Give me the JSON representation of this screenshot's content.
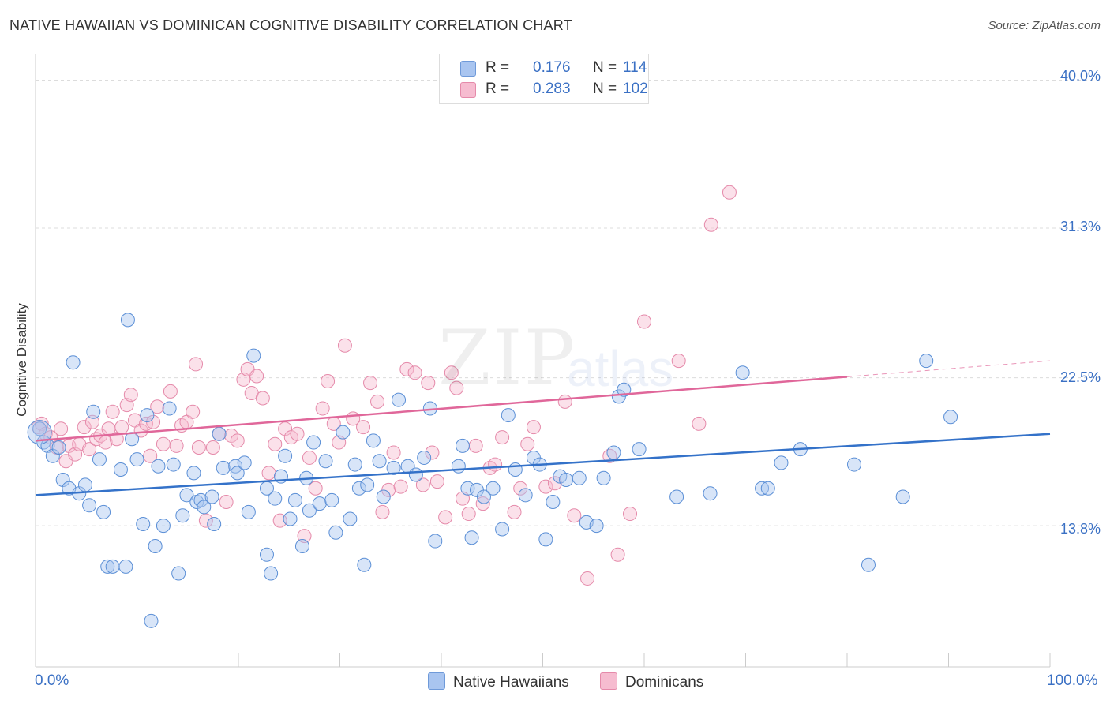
{
  "title": "NATIVE HAWAIIAN VS DOMINICAN COGNITIVE DISABILITY CORRELATION CHART",
  "source": "Source: ZipAtlas.com",
  "watermark": {
    "zip": "ZIP",
    "atlas": "atlas"
  },
  "legend": {
    "rows": [
      {
        "r_label": "R =",
        "r_value": "0.176",
        "n_label": "N =",
        "n_value": "114",
        "color": "#a9c5f0",
        "border": "#6f9ad9"
      },
      {
        "r_label": "R =",
        "r_value": "0.283",
        "n_label": "N =",
        "n_value": "102",
        "color": "#f6bcd0",
        "border": "#e58aaa"
      }
    ]
  },
  "bottom_legend": [
    {
      "label": "Native Hawaiians",
      "color": "#a9c5f0",
      "border": "#6f9ad9"
    },
    {
      "label": "Dominicans",
      "color": "#f6bcd0",
      "border": "#e58aaa"
    }
  ],
  "chart_data": {
    "type": "scatter",
    "title": "NATIVE HAWAIIAN VS DOMINICAN COGNITIVE DISABILITY CORRELATION CHART",
    "xlabel": "",
    "ylabel": "Cognitive Disability",
    "x_tick_labels": [
      "0.0%",
      "100.0%"
    ],
    "y_tick_labels": [
      "40.0%",
      "31.3%",
      "22.5%",
      "13.8%"
    ],
    "y_ticks": [
      40.0,
      31.3,
      22.5,
      13.8
    ],
    "xlim": [
      0,
      100
    ],
    "ylim": [
      5.5,
      41
    ],
    "grid": "horizontal dashed",
    "legend_position": "top-center",
    "colors": {
      "blue_fill": "#a9c5f0",
      "blue_stroke": "#5b8fd6",
      "blue_line": "#3472c9",
      "pink_fill": "#f6bcd0",
      "pink_stroke": "#e58aaa",
      "pink_line": "#e0679a"
    },
    "series": [
      {
        "name": "Native Hawaiians",
        "trend": {
          "x0": 0,
          "y0": 15.6,
          "x1": 100,
          "y1": 19.2
        },
        "points": [
          [
            0.4,
            19.5
          ],
          [
            0.8,
            18.7
          ],
          [
            1.2,
            18.5
          ],
          [
            1.7,
            17.9
          ],
          [
            2.3,
            18.4
          ],
          [
            2.7,
            16.5
          ],
          [
            3.3,
            16.0
          ],
          [
            3.7,
            23.4
          ],
          [
            4.3,
            15.7
          ],
          [
            4.9,
            16.2
          ],
          [
            5.3,
            15.0
          ],
          [
            5.7,
            20.5
          ],
          [
            6.3,
            17.7
          ],
          [
            6.7,
            14.6
          ],
          [
            7.1,
            11.4
          ],
          [
            7.6,
            11.4
          ],
          [
            8.4,
            17.1
          ],
          [
            8.9,
            11.4
          ],
          [
            9.1,
            25.9
          ],
          [
            9.5,
            18.9
          ],
          [
            10.0,
            17.7
          ],
          [
            10.6,
            13.9
          ],
          [
            11.0,
            20.3
          ],
          [
            11.4,
            8.2
          ],
          [
            11.8,
            12.6
          ],
          [
            12.1,
            17.3
          ],
          [
            12.6,
            13.8
          ],
          [
            13.2,
            20.7
          ],
          [
            13.6,
            17.4
          ],
          [
            14.1,
            11.0
          ],
          [
            14.5,
            14.4
          ],
          [
            14.9,
            15.6
          ],
          [
            15.6,
            16.9
          ],
          [
            15.9,
            15.2
          ],
          [
            16.3,
            15.3
          ],
          [
            16.6,
            14.9
          ],
          [
            17.4,
            15.5
          ],
          [
            17.6,
            13.9
          ],
          [
            18.1,
            19.2
          ],
          [
            18.5,
            17.2
          ],
          [
            19.7,
            17.3
          ],
          [
            19.9,
            16.9
          ],
          [
            20.6,
            17.5
          ],
          [
            21.0,
            14.6
          ],
          [
            21.5,
            23.8
          ],
          [
            22.8,
            16.0
          ],
          [
            22.8,
            12.1
          ],
          [
            23.2,
            11.0
          ],
          [
            23.6,
            15.4
          ],
          [
            24.2,
            16.7
          ],
          [
            24.6,
            17.9
          ],
          [
            25.1,
            14.2
          ],
          [
            25.6,
            15.3
          ],
          [
            26.3,
            12.6
          ],
          [
            26.7,
            16.6
          ],
          [
            27.0,
            14.7
          ],
          [
            27.4,
            18.7
          ],
          [
            28.0,
            15.1
          ],
          [
            28.6,
            17.6
          ],
          [
            29.2,
            15.3
          ],
          [
            29.6,
            13.4
          ],
          [
            30.3,
            19.3
          ],
          [
            31.0,
            14.2
          ],
          [
            31.5,
            17.4
          ],
          [
            31.9,
            16.0
          ],
          [
            32.4,
            11.5
          ],
          [
            32.7,
            16.2
          ],
          [
            33.3,
            18.8
          ],
          [
            33.9,
            17.6
          ],
          [
            34.3,
            15.5
          ],
          [
            35.3,
            17.2
          ],
          [
            35.8,
            21.2
          ],
          [
            36.7,
            17.3
          ],
          [
            37.5,
            16.8
          ],
          [
            38.3,
            17.8
          ],
          [
            38.9,
            20.7
          ],
          [
            39.4,
            12.9
          ],
          [
            41.7,
            17.3
          ],
          [
            42.1,
            18.5
          ],
          [
            42.6,
            16.0
          ],
          [
            43.0,
            13.1
          ],
          [
            43.5,
            15.9
          ],
          [
            44.2,
            15.5
          ],
          [
            45.1,
            16.0
          ],
          [
            46.0,
            13.6
          ],
          [
            46.6,
            20.3
          ],
          [
            47.3,
            17.1
          ],
          [
            48.3,
            15.6
          ],
          [
            49.1,
            17.8
          ],
          [
            49.7,
            17.4
          ],
          [
            50.3,
            13.0
          ],
          [
            51.0,
            15.2
          ],
          [
            51.7,
            16.7
          ],
          [
            52.3,
            16.5
          ],
          [
            53.6,
            16.6
          ],
          [
            54.3,
            14.0
          ],
          [
            55.3,
            13.8
          ],
          [
            56.0,
            16.6
          ],
          [
            57.0,
            18.1
          ],
          [
            57.5,
            21.4
          ],
          [
            58.0,
            21.8
          ],
          [
            59.5,
            18.3
          ],
          [
            63.2,
            15.5
          ],
          [
            66.5,
            15.7
          ],
          [
            69.7,
            22.8
          ],
          [
            71.6,
            16.0
          ],
          [
            72.2,
            16.0
          ],
          [
            73.5,
            17.5
          ],
          [
            75.4,
            18.3
          ],
          [
            80.7,
            17.4
          ],
          [
            82.1,
            11.5
          ],
          [
            85.5,
            15.5
          ],
          [
            87.8,
            23.5
          ],
          [
            90.2,
            20.2
          ]
        ]
      },
      {
        "name": "Dominicans",
        "trend": {
          "x0": 0,
          "y0": 18.8,
          "x1": 100,
          "y1": 23.5
        },
        "points": [
          [
            0.3,
            19.6
          ],
          [
            0.6,
            19.8
          ],
          [
            1.0,
            19.2
          ],
          [
            1.5,
            19.0
          ],
          [
            2.1,
            18.4
          ],
          [
            2.5,
            19.5
          ],
          [
            3.0,
            17.6
          ],
          [
            3.3,
            18.5
          ],
          [
            3.9,
            18.0
          ],
          [
            4.3,
            18.6
          ],
          [
            4.8,
            19.6
          ],
          [
            5.3,
            18.3
          ],
          [
            5.6,
            19.9
          ],
          [
            6.0,
            18.9
          ],
          [
            6.4,
            19.1
          ],
          [
            6.9,
            18.7
          ],
          [
            7.2,
            19.5
          ],
          [
            7.6,
            20.5
          ],
          [
            8.0,
            18.9
          ],
          [
            8.5,
            19.6
          ],
          [
            9.0,
            20.9
          ],
          [
            9.4,
            21.5
          ],
          [
            9.8,
            20.0
          ],
          [
            10.4,
            19.4
          ],
          [
            10.9,
            19.8
          ],
          [
            11.3,
            17.9
          ],
          [
            11.6,
            19.9
          ],
          [
            12.0,
            20.8
          ],
          [
            12.6,
            18.6
          ],
          [
            13.3,
            21.7
          ],
          [
            13.9,
            18.5
          ],
          [
            14.4,
            19.7
          ],
          [
            14.9,
            19.9
          ],
          [
            15.5,
            20.5
          ],
          [
            15.8,
            23.3
          ],
          [
            16.1,
            18.4
          ],
          [
            16.8,
            14.1
          ],
          [
            17.5,
            18.4
          ],
          [
            18.1,
            19.2
          ],
          [
            18.8,
            15.2
          ],
          [
            19.3,
            19.1
          ],
          [
            19.9,
            18.8
          ],
          [
            20.5,
            22.4
          ],
          [
            20.9,
            23.0
          ],
          [
            21.3,
            21.6
          ],
          [
            21.8,
            22.6
          ],
          [
            22.4,
            21.3
          ],
          [
            23.0,
            16.9
          ],
          [
            23.6,
            18.6
          ],
          [
            24.1,
            14.1
          ],
          [
            24.6,
            19.5
          ],
          [
            25.2,
            19.0
          ],
          [
            25.8,
            19.2
          ],
          [
            26.5,
            13.2
          ],
          [
            27.0,
            17.8
          ],
          [
            27.6,
            16.0
          ],
          [
            28.3,
            20.7
          ],
          [
            28.8,
            22.3
          ],
          [
            29.4,
            19.8
          ],
          [
            29.9,
            18.7
          ],
          [
            30.5,
            24.4
          ],
          [
            31.3,
            20.1
          ],
          [
            32.3,
            19.6
          ],
          [
            33.0,
            22.2
          ],
          [
            33.7,
            21.1
          ],
          [
            34.2,
            14.6
          ],
          [
            34.8,
            15.9
          ],
          [
            35.3,
            18.1
          ],
          [
            36.0,
            16.1
          ],
          [
            36.6,
            23.0
          ],
          [
            37.4,
            22.8
          ],
          [
            38.2,
            16.2
          ],
          [
            38.7,
            22.2
          ],
          [
            39.1,
            18.1
          ],
          [
            39.6,
            16.4
          ],
          [
            40.4,
            14.3
          ],
          [
            41.0,
            22.8
          ],
          [
            41.5,
            21.9
          ],
          [
            42.1,
            15.4
          ],
          [
            42.7,
            14.5
          ],
          [
            43.4,
            18.5
          ],
          [
            44.1,
            15.1
          ],
          [
            44.8,
            17.2
          ],
          [
            45.3,
            17.4
          ],
          [
            46.0,
            19.0
          ],
          [
            47.2,
            14.6
          ],
          [
            47.8,
            16.0
          ],
          [
            48.5,
            18.6
          ],
          [
            49.1,
            19.6
          ],
          [
            50.3,
            16.1
          ],
          [
            51.2,
            16.3
          ],
          [
            52.2,
            21.1
          ],
          [
            53.1,
            14.4
          ],
          [
            54.4,
            10.7
          ],
          [
            56.6,
            17.9
          ],
          [
            57.4,
            12.1
          ],
          [
            58.6,
            14.5
          ],
          [
            60.0,
            25.8
          ],
          [
            63.4,
            23.5
          ],
          [
            65.4,
            19.8
          ],
          [
            66.6,
            31.5
          ],
          [
            68.4,
            33.4
          ]
        ]
      }
    ]
  }
}
